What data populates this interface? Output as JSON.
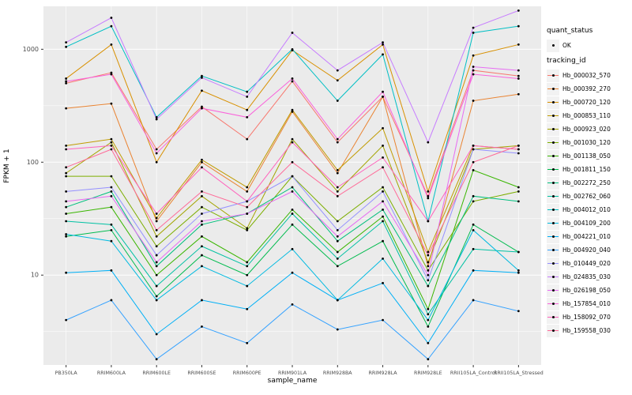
{
  "legend": {
    "quant_title": "quant_status",
    "quant_items": [
      {
        "label": "OK"
      }
    ],
    "tracking_title": "tracking_id"
  },
  "chart_data": {
    "type": "line",
    "title": "",
    "xlabel": "sample_name",
    "ylabel": "FPKM + 1",
    "y_scale": "log10",
    "y_ticks": [
      10,
      100,
      1000
    ],
    "ylim": [
      1.6,
      2400
    ],
    "grid": true,
    "legend_position": "right",
    "panel_bg": "#EBEBEB",
    "grid_color": "#FFFFFF",
    "point_color": "#000000",
    "tick_label_color": "#4D4D4D",
    "categories": [
      "PB350LA",
      "RRIM600LA",
      "RRIM600LE",
      "RRIM600SE",
      "RRIM600PE",
      "RRIM901LA",
      "RRIM928BA",
      "RRIM928LA",
      "RRIM928LE",
      "RRII105LA_Control",
      "RRII105LA_Stressed"
    ],
    "series": [
      {
        "name": "Hb_000032_570",
        "color": "#F8766D",
        "values": [
          500,
          620,
          130,
          310,
          160,
          520,
          150,
          380,
          50,
          650,
          580
        ]
      },
      {
        "name": "Hb_000392_270",
        "color": "#EA8331",
        "values": [
          300,
          330,
          30,
          100,
          55,
          280,
          80,
          380,
          12,
          350,
          400
        ]
      },
      {
        "name": "Hb_000720_120",
        "color": "#D89000",
        "values": [
          550,
          1100,
          100,
          430,
          290,
          980,
          530,
          1100,
          55,
          880,
          1100
        ]
      },
      {
        "name": "Hb_000853_110",
        "color": "#C09B00",
        "values": [
          140,
          160,
          32,
          105,
          60,
          290,
          85,
          200,
          16,
          140,
          130
        ]
      },
      {
        "name": "Hb_000923_020",
        "color": "#A3A500",
        "values": [
          80,
          150,
          22,
          50,
          26,
          160,
          55,
          140,
          13,
          130,
          140
        ]
      },
      {
        "name": "Hb_001030_120",
        "color": "#7CAE00",
        "values": [
          75,
          75,
          18,
          40,
          25,
          75,
          30,
          60,
          11,
          45,
          55
        ]
      },
      {
        "name": "Hb_001138_050",
        "color": "#39B600",
        "values": [
          35,
          40,
          10,
          22,
          13,
          38,
          16,
          33,
          5,
          85,
          60
        ]
      },
      {
        "name": "Hb_001811_150",
        "color": "#00BB4E",
        "values": [
          22,
          25,
          6.5,
          15,
          10,
          28,
          12,
          20,
          3.5,
          28,
          16
        ]
      },
      {
        "name": "Hb_002272_250",
        "color": "#00BF7D",
        "values": [
          40,
          55,
          12,
          28,
          35,
          60,
          20,
          38,
          8,
          50,
          45
        ]
      },
      {
        "name": "Hb_002762_060",
        "color": "#00C1A3",
        "values": [
          30,
          28,
          8,
          18,
          12,
          35,
          14,
          30,
          4.5,
          17,
          16
        ]
      },
      {
        "name": "Hb_004012_010",
        "color": "#00BFC4",
        "values": [
          1050,
          1600,
          250,
          580,
          420,
          1000,
          350,
          900,
          30,
          1400,
          1600
        ]
      },
      {
        "name": "Hb_004109_200",
        "color": "#00BAE0",
        "values": [
          23,
          20,
          6,
          12,
          8,
          17,
          6,
          14,
          4,
          25,
          11
        ]
      },
      {
        "name": "Hb_004221_010",
        "color": "#00B0F6",
        "values": [
          10.5,
          11,
          3,
          6,
          5,
          10.5,
          6,
          8.5,
          2.5,
          11,
          10.5
        ]
      },
      {
        "name": "Hb_004920_040",
        "color": "#35A2FF",
        "values": [
          4,
          6,
          1.8,
          3.5,
          2.5,
          5.5,
          3.3,
          4,
          1.8,
          6,
          4.8
        ]
      },
      {
        "name": "Hb_010449_020",
        "color": "#9590FF",
        "values": [
          55,
          60,
          15,
          35,
          45,
          75,
          25,
          55,
          9,
          130,
          120
        ]
      },
      {
        "name": "Hb_024835_030",
        "color": "#C77CFF",
        "values": [
          1150,
          1900,
          240,
          560,
          380,
          1400,
          650,
          1150,
          150,
          1550,
          2200
        ]
      },
      {
        "name": "Hb_026198_050",
        "color": "#E76BF3",
        "values": [
          45,
          50,
          13,
          30,
          35,
          55,
          22,
          45,
          10,
          700,
          650
        ]
      },
      {
        "name": "Hb_157854_010",
        "color": "#FA62DB",
        "values": [
          520,
          600,
          120,
          300,
          250,
          550,
          160,
          420,
          48,
          600,
          550
        ]
      },
      {
        "name": "Hb_158092_070",
        "color": "#FF62BC",
        "values": [
          130,
          140,
          35,
          90,
          45,
          150,
          60,
          110,
          30,
          140,
          130
        ]
      },
      {
        "name": "Hb_159558_030",
        "color": "#FF6A98",
        "values": [
          90,
          130,
          25,
          55,
          40,
          100,
          50,
          90,
          15,
          100,
          140
        ]
      }
    ]
  }
}
